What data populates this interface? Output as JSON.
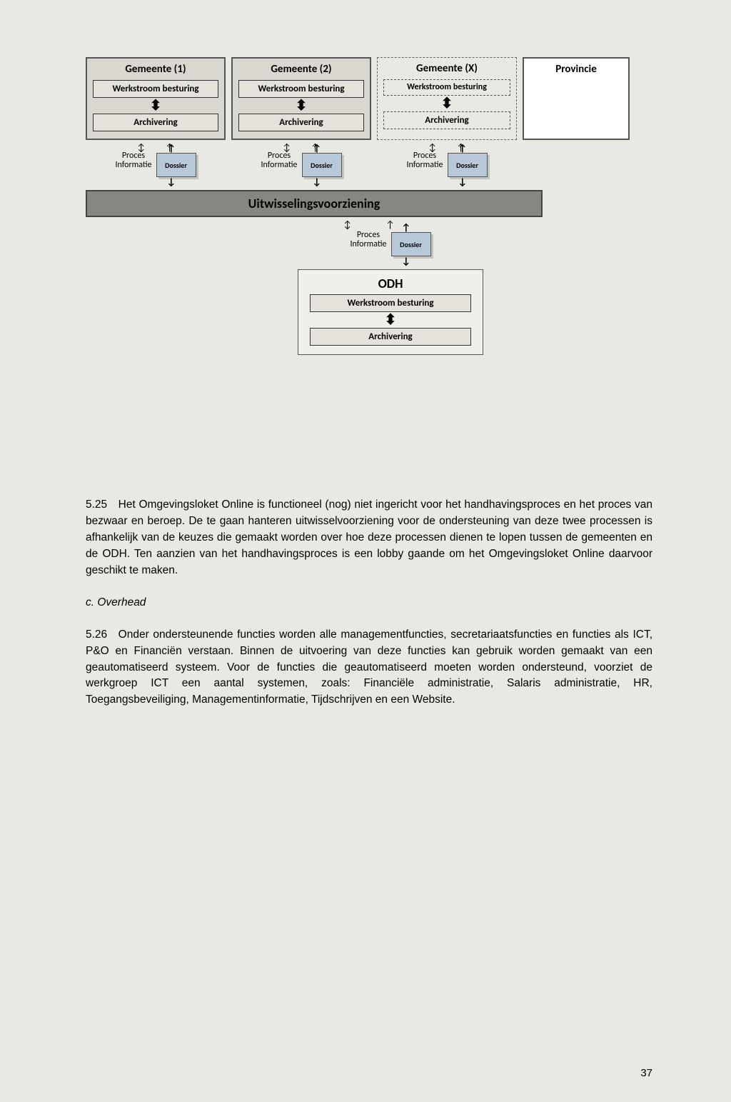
{
  "diagram": {
    "gem1": {
      "title": "Gemeente (1)"
    },
    "gem2": {
      "title": "Gemeente (2)"
    },
    "gemX": {
      "title": "Gemeente (X)"
    },
    "provincie": "Provincie",
    "werkstroom": "Werkstroom besturing",
    "werkstroom_2line": "Werkstroom besturing",
    "archivering": "Archivering",
    "proc": "Proces",
    "info": "Informatie",
    "dossier": "Dossier",
    "bar": "Uitwisselingsvoorziening",
    "odh": "ODH",
    "colors": {
      "page_bg": "#e9e9e4",
      "box_bg": "#d9d7cf",
      "inner_bg": "#e4e2da",
      "bar_bg": "#888682",
      "dossier_bg": "#b7c9d9",
      "odh_bg": "#f0efe9"
    }
  },
  "text": {
    "p525": "5.25 Het Omgevingsloket Online is functioneel (nog) niet ingericht voor het handhavingsproces en het proces van bezwaar en beroep. De te gaan hanteren uitwisselvoorziening voor de ondersteuning van deze twee processen is afhankelijk van de keuzes die gemaakt worden over hoe deze processen dienen te lopen tussen de gemeenten en de ODH. Ten aanzien van het handhavingsproces is een lobby gaande om het Omgevingsloket Online daarvoor geschikt te maken.",
    "c_overhead": "c. Overhead",
    "p526": "5.26 Onder ondersteunende functies worden alle managementfuncties, secretariaatsfuncties en functies als ICT, P&O en Financiën verstaan. Binnen de uitvoering van deze functies kan gebruik worden gemaakt van een geautomatiseerd systeem. Voor de functies die geautomatiseerd moeten worden ondersteund, voorziet de werkgroep ICT een aantal systemen, zoals: Financiële administratie, Salaris administratie, HR, Toegangsbeveiliging, Managementinformatie, Tijdschrijven en een Website."
  },
  "page_number": "37"
}
